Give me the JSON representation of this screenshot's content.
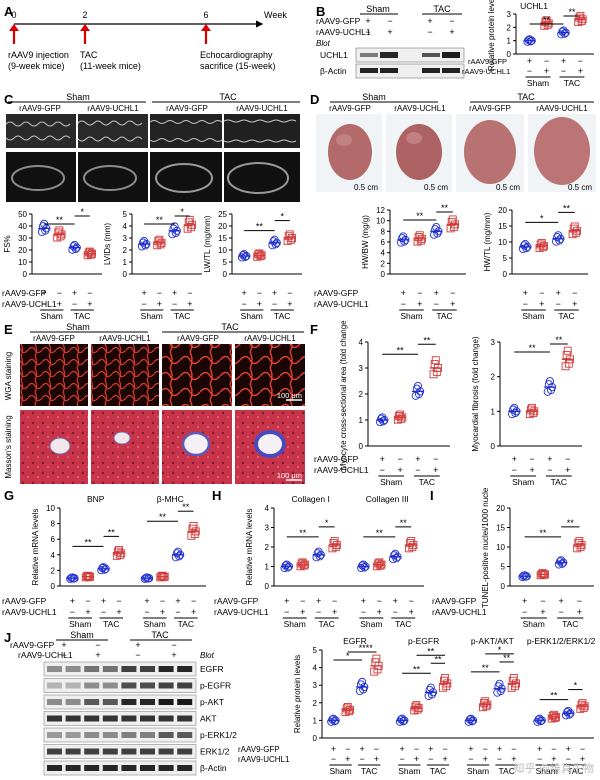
{
  "panels": {
    "A": {
      "letter": "A",
      "axis_unit": "Week",
      "ticks": [
        "0",
        "2",
        "6"
      ],
      "events": [
        {
          "l1": "rAAV9 injection",
          "l2": "(9-week mice)"
        },
        {
          "l1": "TAC",
          "l2": "(11-week mice)"
        },
        {
          "l1": "Echocardiography",
          "l2": "sacrifice (15-week)"
        }
      ]
    },
    "B": {
      "letter": "B",
      "row_gfp": "rAAV9-GFP",
      "row_uchl1": "rAAV9-UCHL1",
      "sham": "Sham",
      "tac": "TAC",
      "blot": "Blot",
      "bands": [
        "UCHL1",
        "β-Actin"
      ],
      "signs": [
        "+",
        "−",
        "+",
        "−"
      ],
      "signs2": [
        "−",
        "+",
        "−",
        "+"
      ],
      "chart_title": "UCHL1",
      "ylabel": "Relative protein level",
      "yticks": [
        "0",
        "1",
        "2",
        "3"
      ],
      "sig": [
        "**",
        "**"
      ]
    },
    "C": {
      "letter": "C",
      "sham": "Sham",
      "tac": "TAC",
      "groups": [
        "rAAV9-GFP",
        "rAAV9-UCHL1",
        "rAAV9-GFP",
        "rAAV9-UCHL1"
      ],
      "ylabels": [
        "FS%",
        "LVIDs (mm)",
        "LW/TL (mg/mm)"
      ],
      "yticks": [
        [
          "0",
          "10",
          "20",
          "30",
          "40",
          "50"
        ],
        [
          "0",
          "1",
          "2",
          "3",
          "4",
          "5"
        ],
        [
          "0",
          "5",
          "10",
          "15",
          "20",
          "25"
        ]
      ],
      "sig": [
        [
          "**",
          "*"
        ],
        [
          "**",
          "*"
        ],
        [
          "**",
          "*"
        ]
      ],
      "row_gfp": "rAAV9-GFP",
      "row_uchl1": "rAAV9-UCHL1"
    },
    "D": {
      "letter": "D",
      "sham": "Sham",
      "tac": "TAC",
      "groups": [
        "rAAV9-GFP",
        "rAAV9-UCHL1",
        "rAAV9-GFP",
        "rAAV9-UCHL1"
      ],
      "scale": "0.5 cm",
      "ylabels": [
        "HW/BW (mg/g)",
        "HW/TL (mg/mm)"
      ],
      "yticks": [
        [
          "0",
          "2",
          "4",
          "6",
          "8",
          "10",
          "12"
        ],
        [
          "0",
          "5",
          "10",
          "15",
          "20"
        ]
      ],
      "sig": [
        [
          "**",
          "**"
        ],
        [
          "*",
          "**"
        ]
      ],
      "row_gfp": "rAAV9-GFP",
      "row_uchl1": "rAAV9-UCHL1"
    },
    "E": {
      "letter": "E",
      "sham": "Sham",
      "tac": "TAC",
      "groups": [
        "rAAV9-GFP",
        "rAAV9-UCHL1",
        "rAAV9-GFP",
        "rAAV9-UCHL1"
      ],
      "rows": [
        "WGA staining",
        "Masson's staining"
      ],
      "scale": "100 μm"
    },
    "F": {
      "letter": "F",
      "ylabels": [
        "Myocyte cross-sectional area (fold change)",
        "Myocardial fibrosis (fold change)"
      ],
      "yticks": [
        [
          "0",
          "1",
          "2",
          "3",
          "4"
        ],
        [
          "0",
          "1",
          "2",
          "3"
        ]
      ],
      "sig": [
        [
          "**",
          "**"
        ],
        [
          "**",
          "**"
        ]
      ],
      "row_gfp": "rAAV9-GFP",
      "row_uchl1": "rAAV9-UCHL1",
      "sham": "Sham",
      "tac": "TAC"
    },
    "G": {
      "letter": "G",
      "ylabel": "Relative mRNA levels",
      "subtitles": [
        "BNP",
        "β-MHC"
      ],
      "yticks": [
        "0",
        "2",
        "4",
        "6",
        "8",
        "10"
      ],
      "sig": [
        "**",
        "**",
        "**",
        "**"
      ],
      "row_gfp": "rAAV9-GFP",
      "row_uchl1": "rAAV9-UCHL1",
      "sham": "Sham",
      "tac": "TAC"
    },
    "H": {
      "letter": "H",
      "ylabel": "Relative mRNA levels",
      "subtitles": [
        "Collagen I",
        "Collagen III"
      ],
      "yticks": [
        "0",
        "1",
        "2",
        "3",
        "4"
      ],
      "sig": [
        "**",
        "*",
        "**",
        "**"
      ],
      "row_gfp": "rAAV9-GFP",
      "row_uchl1": "rAAV9-UCHL1",
      "sham": "Sham",
      "tac": "TAC"
    },
    "I": {
      "letter": "I",
      "ylabel": "TUNEL-positive nuclei/1000 nuclei",
      "yticks": [
        "0",
        "5",
        "10",
        "15",
        "20"
      ],
      "sig": [
        "**",
        "**"
      ],
      "row_gfp": "rAAV9-GFP",
      "row_uchl1": "rAAV9-UCHL1",
      "sham": "Sham",
      "tac": "TAC"
    },
    "J": {
      "letter": "J",
      "row_gfp": "rAAV9-GFP",
      "row_uchl1": "rAAV9-UCHL1",
      "sham": "Sham",
      "tac": "TAC",
      "blot": "Blot",
      "bands": [
        "EGFR",
        "p-EGFR",
        "p-AKT",
        "AKT",
        "p-ERK1/2",
        "ERK1/2",
        "β-Actin"
      ],
      "ylabel": "Relative protein levels",
      "yticks": [
        "0",
        "1",
        "2",
        "3",
        "4",
        "5"
      ],
      "subtitles": [
        "EGFR",
        "p-EGFR",
        "p-AKT/AKT",
        "p-ERK1/2/ERK1/2"
      ],
      "sig": [
        [
          "*",
          "**",
          "**"
        ],
        [
          "**",
          "**",
          "**"
        ],
        [
          "**",
          "**",
          "*"
        ],
        [
          "**",
          "*"
        ]
      ]
    }
  },
  "colors": {
    "gfp": "#1f2fd0",
    "uchl1": "#d23a3a"
  },
  "watermark": "知乎 @维真生物",
  "chart_data": [
    {
      "type": "scatter",
      "panel": "B",
      "ylabel": "Relative protein level",
      "categories": [
        "Sham GFP",
        "Sham UCHL1",
        "TAC GFP",
        "TAC UCHL1"
      ],
      "values": [
        1.0,
        2.3,
        1.6,
        2.6
      ],
      "ylim": [
        0,
        3
      ]
    },
    {
      "type": "scatter",
      "panel": "C1",
      "ylabel": "FS%",
      "categories": [
        "Sham GFP",
        "Sham UCHL1",
        "TAC GFP",
        "TAC UCHL1"
      ],
      "values": [
        38,
        33,
        22,
        17
      ],
      "ylim": [
        0,
        50
      ]
    },
    {
      "type": "scatter",
      "panel": "C2",
      "ylabel": "LVIDs (mm)",
      "categories": [
        "Sham GFP",
        "Sham UCHL1",
        "TAC GFP",
        "TAC UCHL1"
      ],
      "values": [
        2.5,
        2.6,
        3.6,
        4.1
      ],
      "ylim": [
        0,
        5
      ]
    },
    {
      "type": "scatter",
      "panel": "C3",
      "ylabel": "LW/TL (mg/mm)",
      "categories": [
        "Sham GFP",
        "Sham UCHL1",
        "TAC GFP",
        "TAC UCHL1"
      ],
      "values": [
        7.5,
        7.8,
        13,
        15
      ],
      "ylim": [
        0,
        25
      ]
    },
    {
      "type": "scatter",
      "panel": "D1",
      "ylabel": "HW/BW (mg/g)",
      "categories": [
        "Sham GFP",
        "Sham UCHL1",
        "TAC GFP",
        "TAC UCHL1"
      ],
      "values": [
        6.4,
        6.6,
        8.0,
        9.3
      ],
      "ylim": [
        0,
        12
      ]
    },
    {
      "type": "scatter",
      "panel": "D2",
      "ylabel": "HW/TL (mg/mm)",
      "categories": [
        "Sham GFP",
        "Sham UCHL1",
        "TAC GFP",
        "TAC UCHL1"
      ],
      "values": [
        8.5,
        8.8,
        11,
        13.5
      ],
      "ylim": [
        0,
        20
      ]
    },
    {
      "type": "scatter",
      "panel": "F1",
      "ylabel": "Myocyte cross-sectional area (fold change)",
      "categories": [
        "Sham GFP",
        "Sham UCHL1",
        "TAC GFP",
        "TAC UCHL1"
      ],
      "values": [
        1.0,
        1.1,
        2.1,
        3.0
      ],
      "ylim": [
        0,
        4
      ]
    },
    {
      "type": "scatter",
      "panel": "F2",
      "ylabel": "Myocardial fibrosis (fold change)",
      "categories": [
        "Sham GFP",
        "Sham UCHL1",
        "TAC GFP",
        "TAC UCHL1"
      ],
      "values": [
        1.0,
        1.0,
        1.7,
        2.5
      ],
      "ylim": [
        0,
        3
      ]
    },
    {
      "type": "scatter",
      "panel": "G",
      "ylabel": "Relative mRNA levels",
      "series": [
        {
          "name": "BNP",
          "values": [
            1.0,
            1.2,
            2.2,
            4.2
          ]
        },
        {
          "name": "β-MHC",
          "values": [
            1.0,
            1.2,
            4.0,
            7.0
          ]
        }
      ],
      "ylim": [
        0,
        10
      ]
    },
    {
      "type": "scatter",
      "panel": "H",
      "ylabel": "Relative mRNA levels",
      "series": [
        {
          "name": "Collagen I",
          "values": [
            1.0,
            1.1,
            1.6,
            2.1
          ]
        },
        {
          "name": "Collagen III",
          "values": [
            1.0,
            1.1,
            1.5,
            2.1
          ]
        }
      ],
      "ylim": [
        0,
        4
      ]
    },
    {
      "type": "scatter",
      "panel": "I",
      "ylabel": "TUNEL-positive nuclei/1000 nuclei",
      "categories": [
        "Sham GFP",
        "Sham UCHL1",
        "TAC GFP",
        "TAC UCHL1"
      ],
      "values": [
        2.5,
        3.0,
        6.0,
        10.5
      ],
      "ylim": [
        0,
        20
      ]
    },
    {
      "type": "scatter",
      "panel": "J",
      "ylabel": "Relative protein levels",
      "series": [
        {
          "name": "EGFR",
          "values": [
            1.0,
            1.6,
            2.9,
            4.1
          ]
        },
        {
          "name": "p-EGFR",
          "values": [
            1.0,
            1.7,
            2.6,
            3.1
          ]
        },
        {
          "name": "p-AKT/AKT",
          "values": [
            1.0,
            1.9,
            2.8,
            3.1
          ]
        },
        {
          "name": "p-ERK1/2/ERK1/2",
          "values": [
            1.0,
            1.2,
            1.4,
            1.8
          ]
        }
      ],
      "ylim": [
        0,
        5
      ]
    }
  ]
}
